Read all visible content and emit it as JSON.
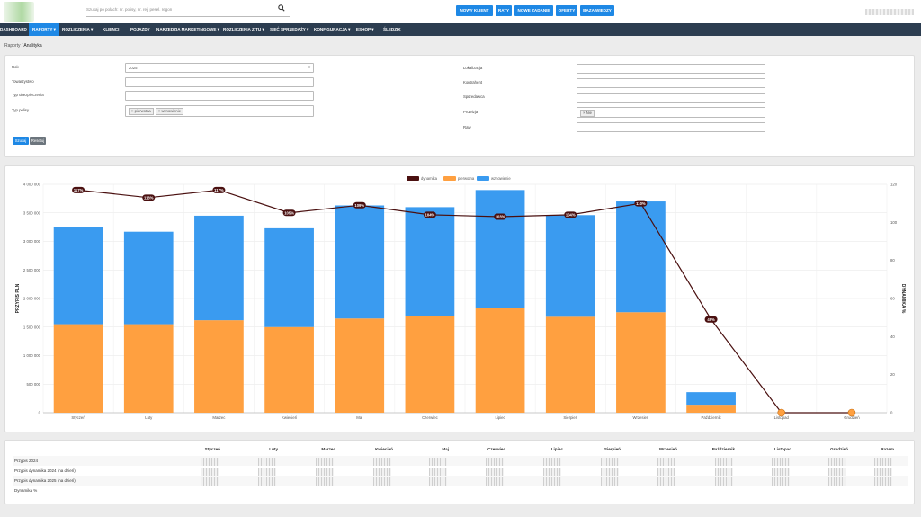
{
  "search": {
    "placeholder": "Szukaj po polach: nr. polisy, nr. rej. pesel. regon"
  },
  "toolbar": {
    "buttons": [
      "NOWY KLIENT",
      "RATY",
      "NOWE ZADANIE",
      "OFERTY",
      "BAZA WIEDZY"
    ]
  },
  "nav": {
    "items": [
      "DASHBOARD",
      "RAPORTY",
      "ROZLICZENIA",
      "KLIENCI",
      "POJAZDY",
      "NARZĘDZIA MARKETINGOWE",
      "ROZLICZENIA Z TU",
      "SIEĆ SPRZEDAŻY",
      "KONFIGURACJA",
      "ESHOP",
      "ŚLEDZIK"
    ],
    "active": "RAPORTY"
  },
  "breadcrumb": {
    "parent": "Raporty",
    "separator": " / ",
    "current": "Analityka"
  },
  "filters": {
    "rok_label": "Rok",
    "rok_value": "2025",
    "towarzystwo_label": "Towarzystwo",
    "typ_ubezpieczenia_label": "Typ ubezpieczenia",
    "typ_polisy_label": "Typ polisy",
    "typ_polisy_chips": [
      "× pierwotna",
      "× wznowienie"
    ],
    "lokalizacja_label": "Lokalizacja",
    "kontrahent_label": "Kontrahent",
    "sprzedawca_label": "Sprzedawca",
    "prowizja_label": "Prowizja",
    "prowizja_chips": [
      "× Nie"
    ],
    "raty_label": "Raty",
    "search_button": "Szukaj",
    "reset_button": "Resetuj"
  },
  "chart_data": {
    "type": "bar",
    "stacked": true,
    "categories": [
      "Styczeń",
      "Luty",
      "Marzec",
      "Kwiecień",
      "Maj",
      "Czerwiec",
      "Lipiec",
      "Sierpień",
      "Wrzesień",
      "Październik",
      "Listopad",
      "Grudzień"
    ],
    "series": [
      {
        "name": "pierwotna",
        "axis": "left",
        "color": "#ffa040",
        "values": [
          1550000,
          1550000,
          1620000,
          1500000,
          1650000,
          1700000,
          1830000,
          1680000,
          1760000,
          140000,
          0,
          0
        ]
      },
      {
        "name": "wznowienie",
        "axis": "left",
        "color": "#3a9bf0",
        "values": [
          1700000,
          1620000,
          1830000,
          1730000,
          1980000,
          1900000,
          2070000,
          1780000,
          1940000,
          220000,
          0,
          0
        ]
      },
      {
        "name": "dynamika",
        "type": "line",
        "axis": "right",
        "color": "#4a1010",
        "values": [
          117,
          113,
          117,
          105,
          109,
          104,
          103,
          104,
          110,
          49,
          0,
          0
        ],
        "labels": [
          "117%",
          "113%",
          "117%",
          "105%",
          "109%",
          "104%",
          "103%",
          "104%",
          "110%",
          "49%",
          "",
          ""
        ]
      }
    ],
    "ylabel": "PRZYPIS PLN",
    "y2label": "DYNAMIKA %",
    "ylim": [
      0,
      4000000
    ],
    "y2lim": [
      0,
      120
    ],
    "yticks": [
      "0",
      "500 000",
      "1 000 000",
      "1 500 000",
      "2 000 000",
      "2 500 000",
      "3 000 000",
      "3 500 000",
      "4 000 000"
    ],
    "y2ticks": [
      "0",
      "20",
      "40",
      "60",
      "80",
      "100",
      "120"
    ],
    "legend": "top-center",
    "grid": true
  },
  "table": {
    "headers": [
      "Styczeń",
      "Luty",
      "Marzec",
      "Kwiecień",
      "Maj",
      "Czerwiec",
      "Lipiec",
      "Sierpień",
      "Wrzesień",
      "Październik",
      "Listopad",
      "Grudzień",
      "Razem"
    ],
    "rows": [
      "Przypis 2024",
      "Przypis dynamika 2024 (na dzień)",
      "Przypis dynamika 2025 (na dzień)",
      "Dynamika %"
    ]
  },
  "colors": {
    "accent": "#1e88e5",
    "nav": "#2c3d50",
    "bar_orange": "#ffa040",
    "bar_blue": "#3a9bf0",
    "line": "#4a1010"
  }
}
